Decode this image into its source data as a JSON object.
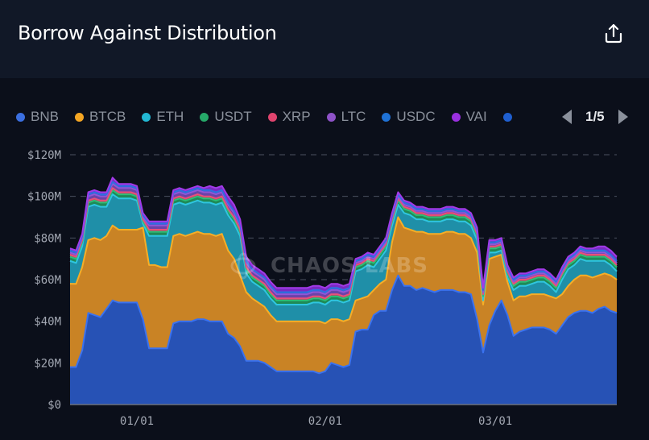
{
  "header": {
    "title": "Borrow Against Distribution",
    "export_icon": "share-export-icon"
  },
  "legend": {
    "items": [
      {
        "label": "BNB",
        "color": "#3b6fe0"
      },
      {
        "label": "BTCB",
        "color": "#f5a623"
      },
      {
        "label": "ETH",
        "color": "#22b8d4"
      },
      {
        "label": "USDT",
        "color": "#26a969"
      },
      {
        "label": "XRP",
        "color": "#e0446e"
      },
      {
        "label": "LTC",
        "color": "#8e52c8"
      },
      {
        "label": "USDC",
        "color": "#1f72d6"
      },
      {
        "label": "VAI",
        "color": "#9b30e0"
      },
      {
        "label": "",
        "color": "#1f5fd0"
      }
    ],
    "page": "1/5",
    "prev_icon": "triangle-left-icon",
    "next_icon": "triangle-right-icon"
  },
  "watermark": "CHAOS LABS",
  "chart_data": {
    "type": "area",
    "stacked": true,
    "title": "Borrow Against Distribution",
    "xlabel": "",
    "ylabel": "",
    "ylim": [
      0,
      120
    ],
    "y_unit": "$M",
    "y_ticks": [
      "$0",
      "$20M",
      "$40M",
      "$60M",
      "$80M",
      "$100M",
      "$120M"
    ],
    "y_tick_values": [
      0,
      20,
      40,
      60,
      80,
      100,
      120
    ],
    "x_ticks": [
      "01/01",
      "02/01",
      "03/01"
    ],
    "x_tick_index": [
      11,
      42,
      70
    ],
    "grid": "horizontal-dashed",
    "legend_position": "top",
    "series": [
      {
        "name": "BNB",
        "values": [
          18,
          18,
          26,
          44,
          43,
          42,
          46,
          50,
          49,
          49,
          49,
          49,
          41,
          27,
          27,
          27,
          27,
          39,
          40,
          40,
          40,
          41,
          41,
          40,
          40,
          40,
          34,
          32,
          28,
          21,
          21,
          21,
          20,
          18,
          16,
          16,
          16,
          16,
          16,
          16,
          16,
          15,
          16,
          20,
          19,
          18,
          19,
          35,
          36,
          36,
          43,
          45,
          45,
          55,
          62,
          57,
          57,
          55,
          56,
          55,
          54,
          55,
          55,
          55,
          54,
          54,
          53,
          41,
          25,
          38,
          45,
          50,
          43,
          33,
          35,
          36,
          37,
          37,
          37,
          36,
          34,
          38,
          42,
          44,
          45,
          45,
          44,
          46,
          47,
          45,
          44
        ]
      },
      {
        "name": "BTCB",
        "values": [
          40,
          40,
          40,
          35,
          37,
          37,
          35,
          36,
          35,
          35,
          35,
          35,
          44,
          40,
          40,
          39,
          39,
          42,
          42,
          41,
          42,
          42,
          41,
          42,
          41,
          42,
          40,
          38,
          34,
          33,
          30,
          28,
          27,
          25,
          24,
          24,
          24,
          24,
          24,
          24,
          24,
          25,
          23,
          21,
          22,
          22,
          22,
          15,
          15,
          16,
          12,
          13,
          15,
          23,
          28,
          28,
          27,
          28,
          27,
          27,
          28,
          27,
          28,
          28,
          28,
          28,
          27,
          32,
          23,
          32,
          26,
          22,
          16,
          17,
          17,
          16,
          16,
          16,
          16,
          16,
          17,
          15,
          15,
          16,
          17,
          17,
          17,
          16,
          16,
          17,
          16
        ]
      },
      {
        "name": "ETH",
        "values": [
          11,
          10,
          10,
          16,
          16,
          16,
          14,
          15,
          15,
          15,
          15,
          14,
          2,
          14,
          14,
          15,
          15,
          15,
          15,
          15,
          15,
          15,
          15,
          15,
          15,
          15,
          17,
          17,
          19,
          9,
          8,
          8,
          8,
          8,
          8,
          8,
          8,
          8,
          8,
          8,
          9,
          9,
          9,
          9,
          9,
          9,
          9,
          14,
          14,
          15,
          11,
          12,
          14,
          8,
          6,
          7,
          7,
          6,
          6,
          6,
          6,
          6,
          6,
          6,
          6,
          6,
          6,
          6,
          2,
          3,
          2,
          2,
          2,
          5,
          5,
          5,
          5,
          6,
          6,
          5,
          3,
          7,
          8,
          7,
          8,
          7,
          8,
          7,
          6,
          5,
          4
        ]
      },
      {
        "name": "USDT",
        "values": [
          2,
          2,
          2,
          2,
          2,
          2,
          2,
          2,
          2,
          2,
          2,
          2,
          1,
          2,
          2,
          2,
          2,
          2,
          2,
          2,
          2,
          2,
          2,
          2,
          2,
          2,
          2,
          2,
          2,
          2,
          2,
          2,
          2,
          2,
          2,
          2,
          2,
          2,
          2,
          2,
          2,
          2,
          2,
          2,
          2,
          2,
          2,
          2,
          2,
          2,
          2,
          2,
          2,
          2,
          2,
          2,
          2,
          2,
          2,
          2,
          2,
          2,
          2,
          2,
          2,
          2,
          2,
          2,
          2,
          2,
          2,
          2,
          2,
          2,
          2,
          2,
          2,
          2,
          2,
          2,
          2,
          2,
          2,
          2,
          2,
          2,
          2,
          2,
          2,
          2,
          2
        ]
      },
      {
        "name": "XRP",
        "values": [
          1,
          1,
          1,
          1,
          1,
          1,
          1,
          1,
          1,
          1,
          1,
          1,
          1,
          1,
          1,
          1,
          1,
          1,
          1,
          1,
          1,
          1,
          1,
          1,
          1,
          1,
          1,
          1,
          1,
          1,
          1,
          1,
          1,
          1,
          1,
          1,
          1,
          1,
          1,
          1,
          1,
          1,
          1,
          1,
          1,
          1,
          1,
          1,
          1,
          1,
          1,
          1,
          1,
          1,
          1,
          1,
          1,
          1,
          1,
          1,
          1,
          1,
          1,
          1,
          1,
          1,
          1,
          1,
          1,
          1,
          1,
          1,
          1,
          1,
          1,
          1,
          1,
          1,
          1,
          1,
          1,
          1,
          1,
          1,
          1,
          1,
          1,
          1,
          1,
          1,
          1
        ]
      },
      {
        "name": "LTC",
        "values": [
          1,
          1,
          1,
          2,
          2,
          2,
          2,
          2,
          2,
          2,
          2,
          2,
          1,
          2,
          2,
          2,
          2,
          2,
          2,
          2,
          2,
          2,
          2,
          2,
          2,
          2,
          2,
          2,
          2,
          2,
          2,
          2,
          2,
          2,
          2,
          2,
          2,
          2,
          2,
          2,
          2,
          2,
          2,
          2,
          2,
          2,
          2,
          1,
          1,
          1,
          1,
          1,
          1,
          1,
          1,
          1,
          1,
          1,
          1,
          1,
          1,
          1,
          1,
          1,
          1,
          1,
          1,
          1,
          1,
          1,
          1,
          1,
          1,
          1,
          1,
          1,
          1,
          1,
          1,
          1,
          1,
          1,
          1,
          1,
          1,
          1,
          1,
          1,
          1,
          1,
          1
        ]
      },
      {
        "name": "USDC",
        "values": [
          1,
          1,
          1,
          1,
          1,
          1,
          1,
          1,
          1,
          1,
          1,
          1,
          1,
          1,
          1,
          1,
          1,
          1,
          1,
          1,
          1,
          1,
          1,
          1,
          1,
          1,
          1,
          1,
          1,
          1,
          1,
          1,
          1,
          1,
          1,
          1,
          1,
          1,
          1,
          1,
          1,
          1,
          1,
          1,
          1,
          1,
          1,
          1,
          1,
          1,
          1,
          1,
          1,
          1,
          1,
          1,
          1,
          1,
          1,
          1,
          1,
          1,
          1,
          1,
          1,
          1,
          1,
          1,
          1,
          1,
          1,
          1,
          1,
          1,
          1,
          1,
          1,
          1,
          1,
          1,
          1,
          1,
          1,
          1,
          1,
          1,
          1,
          1,
          1,
          1,
          1
        ]
      },
      {
        "name": "VAI",
        "values": [
          1,
          1,
          1,
          1,
          1,
          1,
          1,
          2,
          1,
          1,
          1,
          1,
          1,
          1,
          1,
          1,
          1,
          1,
          1,
          1,
          1,
          1,
          1,
          2,
          2,
          2,
          3,
          3,
          2,
          2,
          2,
          2,
          2,
          2,
          2,
          2,
          2,
          2,
          2,
          2,
          2,
          2,
          2,
          2,
          2,
          2,
          2,
          1,
          1,
          1,
          1,
          1,
          1,
          1,
          1,
          1,
          1,
          1,
          1,
          1,
          1,
          1,
          1,
          1,
          1,
          1,
          1,
          1,
          1,
          1,
          1,
          1,
          1,
          1,
          1,
          1,
          1,
          1,
          1,
          1,
          1,
          1,
          1,
          1,
          1,
          1,
          1,
          2,
          2,
          2,
          2
        ]
      }
    ]
  }
}
